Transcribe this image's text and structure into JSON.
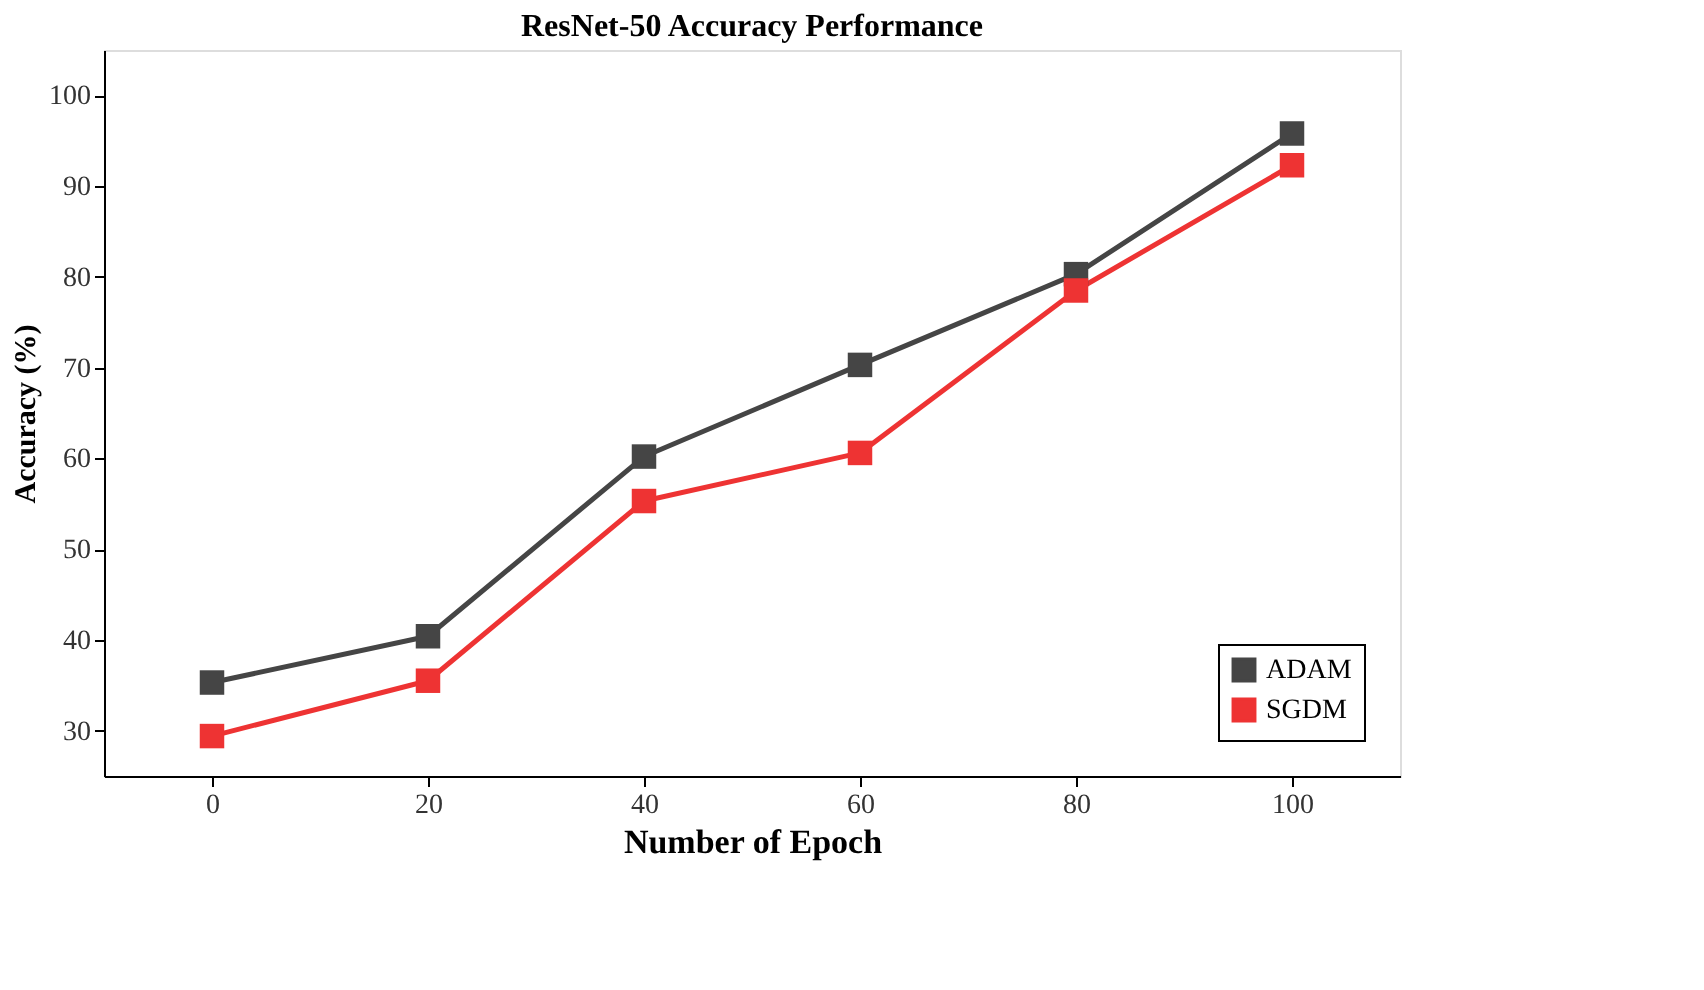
{
  "chart_data": {
    "type": "line",
    "title": "ResNet-50 Accuracy Performance",
    "xlabel": "Number of Epoch",
    "ylabel": "Accuracy (%)",
    "x": [
      0,
      20,
      40,
      60,
      80,
      100
    ],
    "series": [
      {
        "name": "ADAM",
        "color": "#454545",
        "values": [
          35.3,
          40.4,
          60.2,
          70.3,
          80.3,
          95.8
        ]
      },
      {
        "name": "SGDM",
        "color": "#ee3333",
        "values": [
          29.4,
          35.5,
          55.3,
          60.6,
          78.5,
          92.3
        ]
      }
    ],
    "xlim": [
      -10,
      110
    ],
    "xticks": [
      0,
      20,
      40,
      60,
      80,
      100
    ],
    "ylim": [
      25,
      105
    ],
    "yticks": [
      30,
      40,
      50,
      60,
      70,
      80,
      90,
      100
    ],
    "grid": false,
    "legend": "bottom right",
    "marker": "square",
    "line_style": "solid"
  }
}
